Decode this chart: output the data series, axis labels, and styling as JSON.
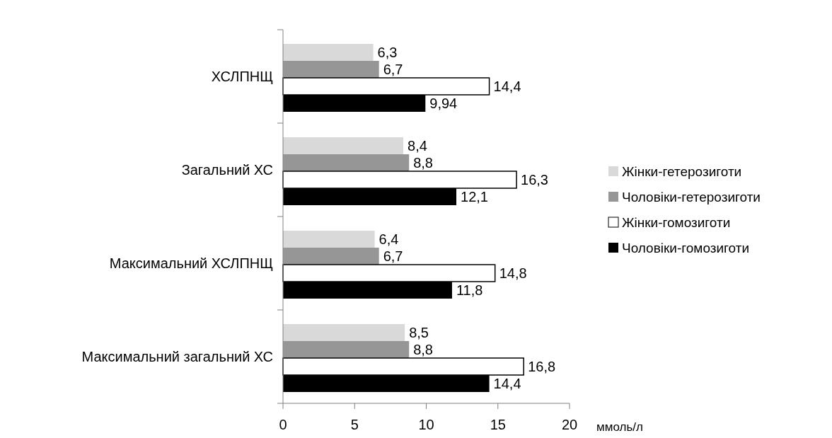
{
  "chart_data": {
    "type": "bar",
    "orientation": "horizontal",
    "xlabel": "ммоль/л",
    "categories": [
      "ХСЛПНЩ",
      "Загальний ХС",
      "Максимальний ХСЛПНЩ",
      "Максимальний загальний ХС"
    ],
    "series": [
      {
        "name": "Жінки-гетерозиготи",
        "color": "#d9d9d9",
        "values": [
          6.3,
          8.4,
          6.4,
          8.5
        ],
        "value_labels": [
          "6,3",
          "8,4",
          "6,4",
          "8,5"
        ]
      },
      {
        "name": "Чоловіки-гетерозиготи",
        "color": "#969696",
        "values": [
          6.7,
          8.8,
          6.7,
          8.8
        ],
        "value_labels": [
          "6,7",
          "8,8",
          "6,7",
          "8,8"
        ]
      },
      {
        "name": "Жінки-гомозиготи",
        "color": "#ffffff",
        "values": [
          14.4,
          16.3,
          14.8,
          16.8
        ],
        "value_labels": [
          "14,4",
          "16,3",
          "14,8",
          "16,8"
        ]
      },
      {
        "name": "Чоловіки-гомозиготи",
        "color": "#000000",
        "values": [
          9.94,
          12.1,
          11.8,
          14.4
        ],
        "value_labels": [
          "9,94",
          "12,1",
          "11,8",
          "14,4"
        ]
      }
    ],
    "xlim": [
      0,
      20
    ],
    "xticks": [
      0,
      5,
      10,
      15,
      20
    ],
    "grid": false,
    "legend": "right"
  }
}
